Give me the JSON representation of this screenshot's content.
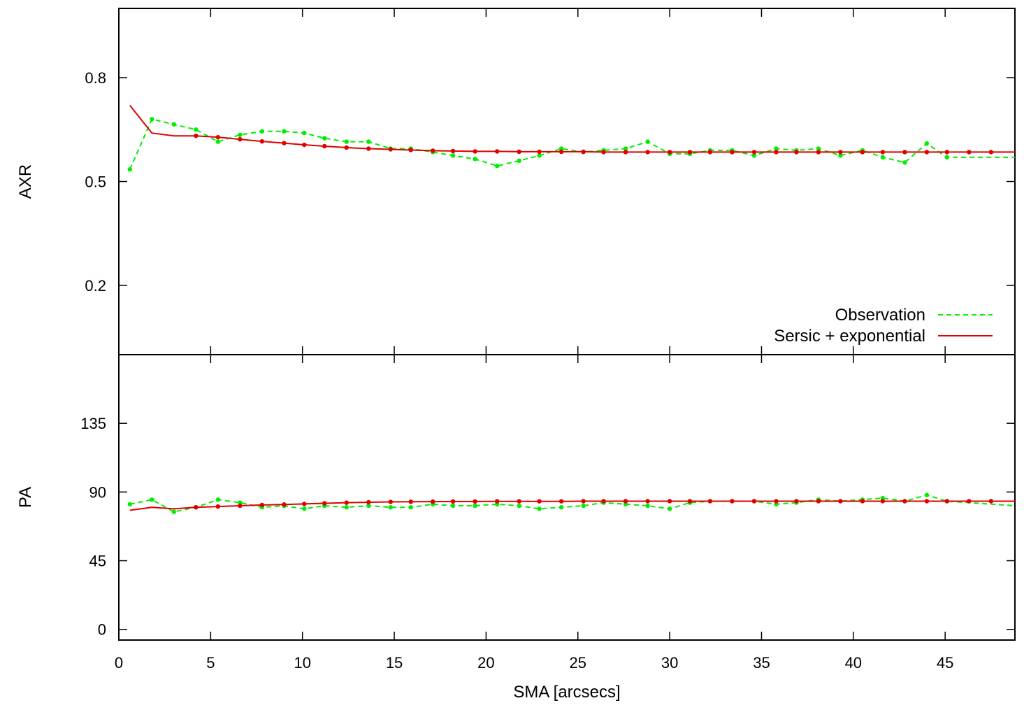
{
  "colors": {
    "observation": "#00ee00",
    "model": "#e00000",
    "axis": "#000000"
  },
  "chart_data": [
    {
      "type": "line",
      "panel": "top",
      "ylabel": "AXR",
      "xlabel": "",
      "xlim": [
        0,
        48.8
      ],
      "ylim": [
        0.0,
        1.0
      ],
      "yticks": [
        0.2,
        0.5,
        0.8
      ],
      "ytick_labels": [
        "0.2",
        "0.5",
        "0.8"
      ],
      "legend": {
        "placement": "bottom-right",
        "entries": [
          "Observation",
          "Sersic + exponential"
        ]
      },
      "series": [
        {
          "name": "Observation",
          "style": "dashed",
          "color": "#00ee00",
          "x": [
            0.6,
            1.8,
            3.0,
            4.2,
            5.4,
            6.6,
            7.8,
            9.0,
            10.1,
            11.2,
            12.4,
            13.6,
            14.8,
            15.9,
            17.1,
            18.2,
            19.4,
            20.6,
            21.8,
            22.9,
            24.1,
            25.3,
            26.4,
            27.6,
            28.8,
            30.0,
            31.1,
            32.2,
            33.4,
            34.6,
            35.8,
            36.9,
            38.1,
            39.3,
            40.5,
            41.6,
            42.8,
            44.0,
            45.1,
            48.8
          ],
          "y": [
            0.535,
            0.68,
            0.665,
            0.65,
            0.615,
            0.635,
            0.645,
            0.645,
            0.64,
            0.625,
            0.615,
            0.615,
            0.595,
            0.595,
            0.585,
            0.575,
            0.565,
            0.545,
            0.56,
            0.575,
            0.595,
            0.585,
            0.59,
            0.595,
            0.615,
            0.58,
            0.58,
            0.59,
            0.59,
            0.575,
            0.595,
            0.59,
            0.595,
            0.575,
            0.59,
            0.57,
            0.555,
            0.61,
            0.57,
            0.57
          ]
        },
        {
          "name": "Sersic + exponential",
          "style": "solid",
          "color": "#e00000",
          "x": [
            0.6,
            1.8,
            3.0,
            4.2,
            5.4,
            6.6,
            7.8,
            9.0,
            10.1,
            11.2,
            12.4,
            13.6,
            14.8,
            15.9,
            17.1,
            18.2,
            19.4,
            20.6,
            21.8,
            22.9,
            24.1,
            25.3,
            26.4,
            27.6,
            28.8,
            30.0,
            31.1,
            32.2,
            33.4,
            34.6,
            35.8,
            36.9,
            38.1,
            39.3,
            40.5,
            41.6,
            42.8,
            44.0,
            45.1,
            46.3,
            47.5,
            48.8
          ],
          "y": [
            0.72,
            0.64,
            0.632,
            0.632,
            0.628,
            0.622,
            0.616,
            0.611,
            0.606,
            0.602,
            0.598,
            0.595,
            0.593,
            0.591,
            0.589,
            0.588,
            0.587,
            0.587,
            0.586,
            0.586,
            0.586,
            0.586,
            0.585,
            0.585,
            0.585,
            0.585,
            0.585,
            0.585,
            0.585,
            0.585,
            0.585,
            0.585,
            0.585,
            0.585,
            0.585,
            0.585,
            0.585,
            0.585,
            0.585,
            0.585,
            0.585,
            0.585
          ]
        }
      ]
    },
    {
      "type": "line",
      "panel": "bottom",
      "ylabel": "PA",
      "xlabel": "SMA [arcsecs]",
      "xlim": [
        0,
        48.8
      ],
      "ylim": [
        -7,
        180
      ],
      "yticks": [
        0,
        45,
        90,
        135
      ],
      "ytick_labels": [
        "0",
        "45",
        "90",
        "135"
      ],
      "xticks": [
        0,
        5,
        10,
        15,
        20,
        25,
        30,
        35,
        40,
        45
      ],
      "xtick_labels": [
        "0",
        "5",
        "10",
        "15",
        "20",
        "25",
        "30",
        "35",
        "40",
        "45"
      ],
      "series": [
        {
          "name": "Observation",
          "style": "dashed",
          "color": "#00ee00",
          "x": [
            0.6,
            1.8,
            3.0,
            4.2,
            5.4,
            6.6,
            7.8,
            9.0,
            10.1,
            11.2,
            12.4,
            13.6,
            14.8,
            15.9,
            17.1,
            18.2,
            19.4,
            20.6,
            21.8,
            22.9,
            24.1,
            25.3,
            26.4,
            27.6,
            28.8,
            30.0,
            31.1,
            32.2,
            33.4,
            34.6,
            35.8,
            36.9,
            38.1,
            39.3,
            40.5,
            41.6,
            42.8,
            44.0,
            45.1,
            48.8
          ],
          "y": [
            82,
            85,
            77,
            80,
            85,
            83,
            80,
            81,
            79,
            81,
            80,
            81,
            80,
            80,
            82,
            81,
            81,
            82,
            81,
            79,
            80,
            81,
            83,
            82,
            81,
            79,
            83,
            84,
            84,
            84,
            82,
            83,
            85,
            84,
            85,
            86,
            84,
            88,
            84,
            81
          ]
        },
        {
          "name": "Sersic + exponential",
          "style": "solid",
          "color": "#e00000",
          "x": [
            0.6,
            1.8,
            3.0,
            4.2,
            5.4,
            6.6,
            7.8,
            9.0,
            10.1,
            11.2,
            12.4,
            13.6,
            14.8,
            15.9,
            17.1,
            18.2,
            19.4,
            20.6,
            21.8,
            22.9,
            24.1,
            25.3,
            26.4,
            27.6,
            28.8,
            30.0,
            31.1,
            32.2,
            33.4,
            34.6,
            35.8,
            36.9,
            38.1,
            39.3,
            40.5,
            41.6,
            42.8,
            44.0,
            45.1,
            46.3,
            47.5,
            48.8
          ],
          "y": [
            78,
            80,
            79,
            80,
            80.5,
            81,
            81.5,
            81.8,
            82.2,
            82.6,
            83,
            83.3,
            83.5,
            83.6,
            83.7,
            83.8,
            83.8,
            83.9,
            83.9,
            83.9,
            83.9,
            84,
            84,
            84,
            84,
            84,
            84,
            84,
            84,
            84,
            84,
            84,
            84,
            84,
            84,
            84,
            84,
            84,
            84,
            84,
            84,
            84
          ]
        }
      ]
    }
  ]
}
